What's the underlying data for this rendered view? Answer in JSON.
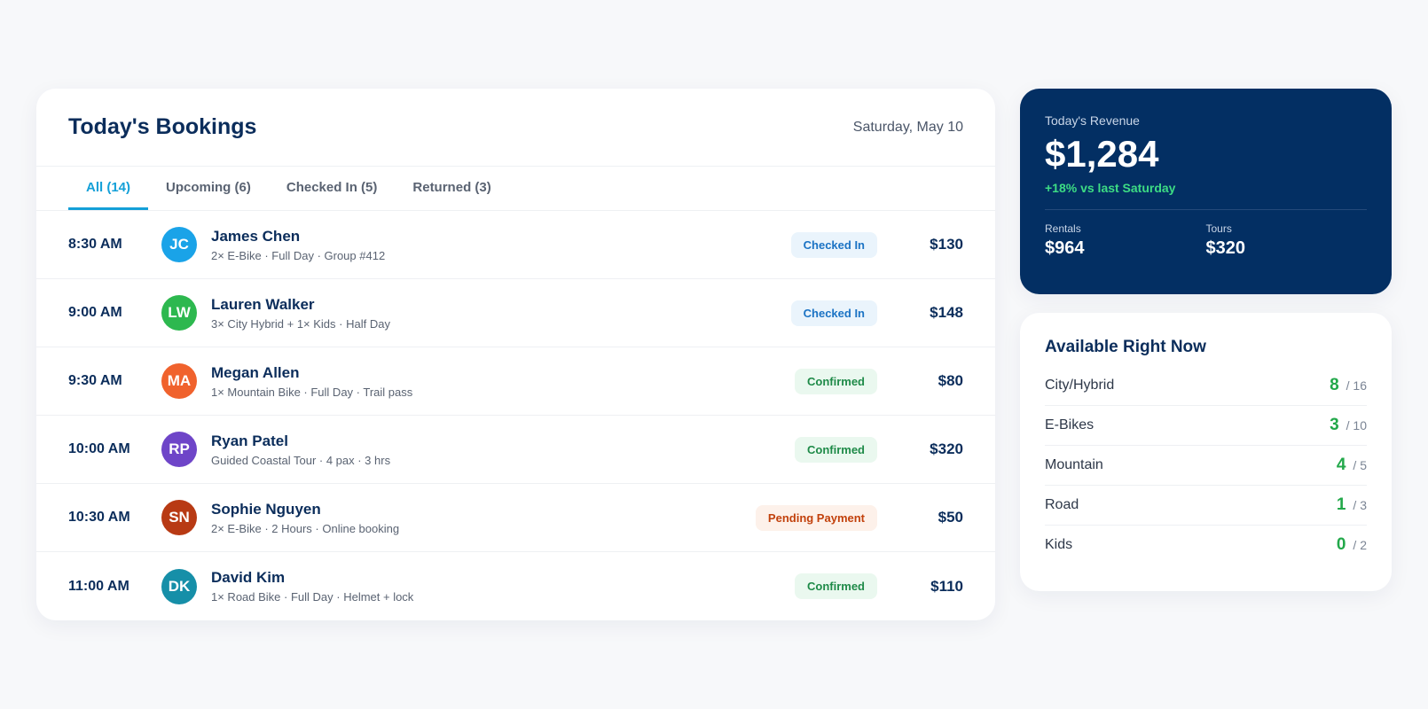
{
  "bookings": {
    "title": "Today's Bookings",
    "date": "Saturday, May 10",
    "tabs": [
      {
        "label": "All (14)",
        "active": true
      },
      {
        "label": "Upcoming (6)",
        "active": false
      },
      {
        "label": "Checked In (5)",
        "active": false
      },
      {
        "label": "Returned (3)",
        "active": false
      }
    ],
    "rows": [
      {
        "time": "8:30 AM",
        "initials": "JC",
        "avatar_color": "#1aa3e8",
        "name": "James Chen",
        "detail": "2× E-Bike · Full Day · Group #412",
        "status": "Checked In",
        "status_color": "#1b73c4",
        "status_bg": "#eaf4fc",
        "amount": "$130"
      },
      {
        "time": "9:00 AM",
        "initials": "LW",
        "avatar_color": "#2db84f",
        "name": "Lauren Walker",
        "detail": "3× City Hybrid + 1× Kids · Half Day",
        "status": "Checked In",
        "status_color": "#1b73c4",
        "status_bg": "#eaf4fc",
        "amount": "$148"
      },
      {
        "time": "9:30 AM",
        "initials": "MA",
        "avatar_color": "#f0622d",
        "name": "Megan Allen",
        "detail": "1× Mountain Bike · Full Day · Trail pass",
        "status": "Confirmed",
        "status_color": "#1e8a48",
        "status_bg": "#eaf8ef",
        "amount": "$80"
      },
      {
        "time": "10:00 AM",
        "initials": "RP",
        "avatar_color": "#6e45c8",
        "name": "Ryan Patel",
        "detail": "Guided Coastal Tour · 4 pax · 3 hrs",
        "status": "Confirmed",
        "status_color": "#1e8a48",
        "status_bg": "#eaf8ef",
        "amount": "$320"
      },
      {
        "time": "10:30 AM",
        "initials": "SN",
        "avatar_color": "#b83a14",
        "name": "Sophie Nguyen",
        "detail": "2× E-Bike · 2 Hours · Online booking",
        "status": "Pending Payment",
        "status_color": "#c2410c",
        "status_bg": "#fdf1ea",
        "amount": "$50"
      },
      {
        "time": "11:00 AM",
        "initials": "DK",
        "avatar_color": "#168fa8",
        "name": "David Kim",
        "detail": "1× Road Bike · Full Day · Helmet + lock",
        "status": "Confirmed",
        "status_color": "#1e8a48",
        "status_bg": "#eaf8ef",
        "amount": "$110"
      }
    ]
  },
  "revenue": {
    "label": "Today's Revenue",
    "amount": "$1,284",
    "change": "+18% vs last Saturday",
    "breakdown": [
      {
        "label": "Rentals",
        "value": "$964"
      },
      {
        "label": "Tours",
        "value": "$320"
      }
    ]
  },
  "availability": {
    "title": "Available Right Now",
    "items": [
      {
        "name": "City/Hybrid",
        "available": 8,
        "total": "/ 16"
      },
      {
        "name": "E-Bikes",
        "available": 3,
        "total": "/ 10"
      },
      {
        "name": "Mountain",
        "available": 4,
        "total": "/ 5"
      },
      {
        "name": "Road",
        "available": 1,
        "total": "/ 3"
      },
      {
        "name": "Kids",
        "available": 0,
        "total": "/ 2"
      }
    ]
  }
}
